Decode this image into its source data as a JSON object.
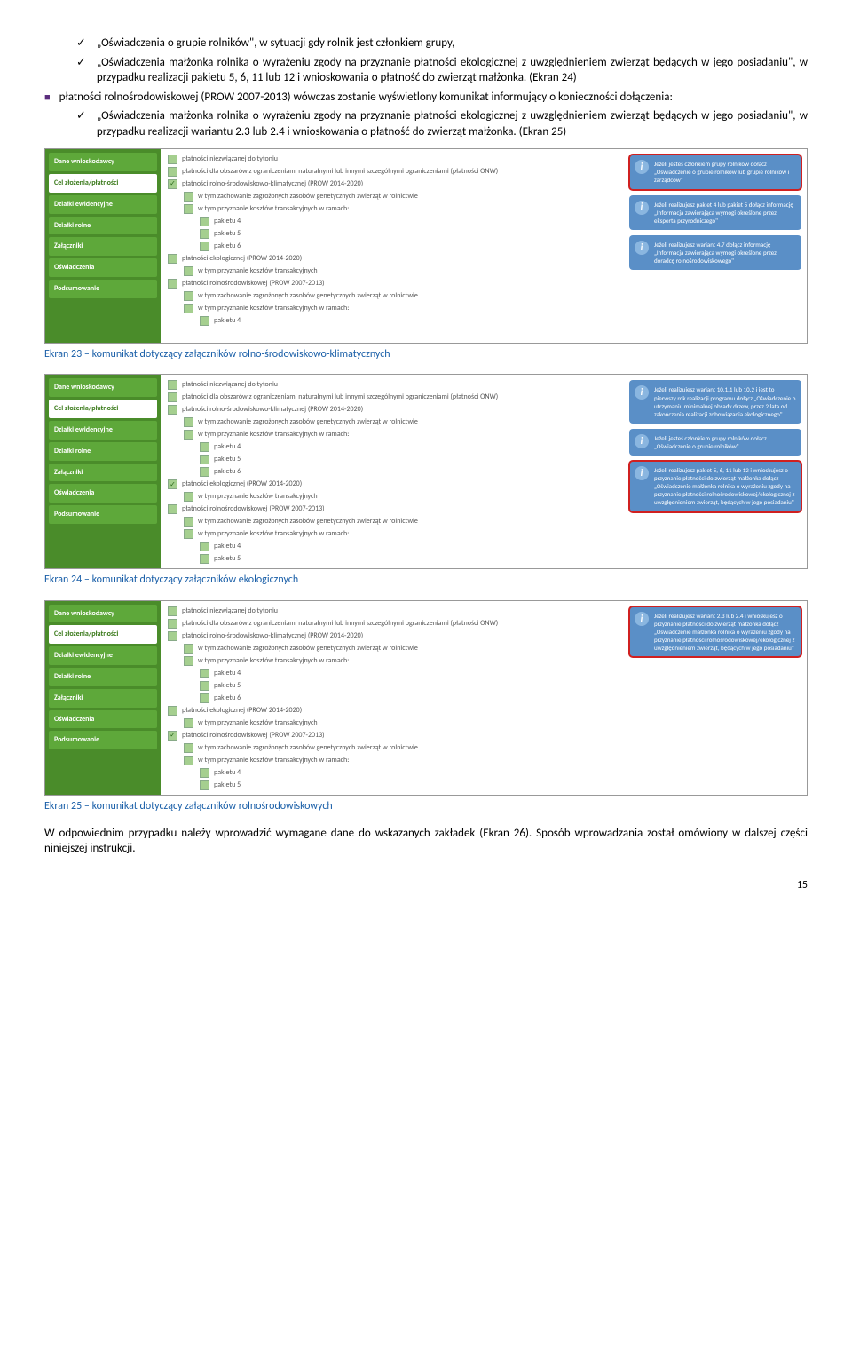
{
  "bullets": {
    "b1_checks": [
      "„Oświadczenia o grupie rolników\", w sytuacji gdy rolnik jest członkiem grupy,",
      "„Oświadczenia małżonka rolnika o wyrażeniu zgody na przyznanie płatności ekologicznej z uwzględnieniem zwierząt będących w jego posiadaniu\", w przypadku realizacji pakietu 5, 6, 11 lub 12 i wnioskowania o płatność do zwierząt małżonka. (Ekran 24)"
    ],
    "b2_main": "płatności rolnośrodowiskowej (PROW 2007-2013) wówczas zostanie wyświetlony komunikat informujący o konieczności dołączenia:",
    "b2_checks": [
      "„Oświadczenia małżonka rolnika o wyrażeniu zgody na przyznanie płatności ekologicznej z uwzględnieniem zwierząt będących w jego posiadaniu\", w przypadku realizacji wariantu 2.3 lub 2.4 i wnioskowania o płatność do zwierząt małżonka. (Ekran 25)"
    ]
  },
  "sidebar": {
    "items": [
      {
        "label": "Dane wnioskodawcy",
        "active": false
      },
      {
        "label": "Cel złożenia/płatności",
        "active": true
      },
      {
        "label": "Działki ewidencyjne",
        "active": false
      },
      {
        "label": "Działki rolne",
        "active": false
      },
      {
        "label": "Załączniki",
        "active": false
      },
      {
        "label": "Oświadczenia",
        "active": false
      },
      {
        "label": "Podsumowanie",
        "active": false
      }
    ]
  },
  "screenshot_checks": {
    "s1": [
      {
        "label": "płatności niezwiązanej do tytoniu",
        "indent": 0,
        "checked": false
      },
      {
        "label": "płatności dla obszarów z ograniczeniami naturalnymi lub innymi szczególnymi ograniczeniami (płatności ONW)",
        "indent": 0,
        "checked": false
      },
      {
        "label": "płatności rolno-środowiskowo-klimatycznej (PROW 2014-2020)",
        "indent": 0,
        "checked": true
      },
      {
        "label": "w tym zachowanie zagrożonych zasobów genetycznych zwierząt w rolnictwie",
        "indent": 1,
        "checked": false
      },
      {
        "label": "w tym przyznanie kosztów transakcyjnych w ramach:",
        "indent": 1,
        "checked": false
      },
      {
        "label": "pakietu 4",
        "indent": 2,
        "checked": false
      },
      {
        "label": "pakietu 5",
        "indent": 2,
        "checked": false
      },
      {
        "label": "pakietu 6",
        "indent": 2,
        "checked": false
      },
      {
        "label": "płatności ekologicznej (PROW 2014-2020)",
        "indent": 0,
        "checked": false
      },
      {
        "label": "w tym przyznanie kosztów transakcyjnych",
        "indent": 1,
        "checked": false
      },
      {
        "label": "płatności rolnośrodowiskowej (PROW 2007-2013)",
        "indent": 0,
        "checked": false
      },
      {
        "label": "w tym zachowanie zagrożonych zasobów genetycznych zwierząt w rolnictwie",
        "indent": 1,
        "checked": false
      },
      {
        "label": "w tym przyznanie kosztów transakcyjnych w ramach:",
        "indent": 1,
        "checked": false
      },
      {
        "label": "pakietu 4",
        "indent": 2,
        "checked": false
      }
    ],
    "s2": [
      {
        "label": "płatności niezwiązanej do tytoniu",
        "indent": 0,
        "checked": false
      },
      {
        "label": "płatności dla obszarów z ograniczeniami naturalnymi lub innymi szczególnymi ograniczeniami (płatności ONW)",
        "indent": 0,
        "checked": false
      },
      {
        "label": "płatności rolno-środowiskowo-klimatycznej (PROW 2014-2020)",
        "indent": 0,
        "checked": false
      },
      {
        "label": "w tym zachowanie zagrożonych zasobów genetycznych zwierząt w rolnictwie",
        "indent": 1,
        "checked": false
      },
      {
        "label": "w tym przyznanie kosztów transakcyjnych w ramach:",
        "indent": 1,
        "checked": false
      },
      {
        "label": "pakietu 4",
        "indent": 2,
        "checked": false
      },
      {
        "label": "pakietu 5",
        "indent": 2,
        "checked": false
      },
      {
        "label": "pakietu 6",
        "indent": 2,
        "checked": false
      },
      {
        "label": "płatności ekologicznej (PROW 2014-2020)",
        "indent": 0,
        "checked": true
      },
      {
        "label": "w tym przyznanie kosztów transakcyjnych",
        "indent": 1,
        "checked": false
      },
      {
        "label": "płatności rolnośrodowiskowej (PROW 2007-2013)",
        "indent": 0,
        "checked": false
      },
      {
        "label": "w tym zachowanie zagrożonych zasobów genetycznych zwierząt w rolnictwie",
        "indent": 1,
        "checked": false
      },
      {
        "label": "w tym przyznanie kosztów transakcyjnych w ramach:",
        "indent": 1,
        "checked": false
      },
      {
        "label": "pakietu 4",
        "indent": 2,
        "checked": false
      },
      {
        "label": "pakietu 5",
        "indent": 2,
        "checked": false
      }
    ],
    "s3": [
      {
        "label": "płatności niezwiązanej do tytoniu",
        "indent": 0,
        "checked": false
      },
      {
        "label": "płatności dla obszarów z ograniczeniami naturalnymi lub innymi szczególnymi ograniczeniami (płatności ONW)",
        "indent": 0,
        "checked": false
      },
      {
        "label": "płatności rolno-środowiskowo-klimatycznej (PROW 2014-2020)",
        "indent": 0,
        "checked": false
      },
      {
        "label": "w tym zachowanie zagrożonych zasobów genetycznych zwierząt w rolnictwie",
        "indent": 1,
        "checked": false
      },
      {
        "label": "w tym przyznanie kosztów transakcyjnych w ramach:",
        "indent": 1,
        "checked": false
      },
      {
        "label": "pakietu 4",
        "indent": 2,
        "checked": false
      },
      {
        "label": "pakietu 5",
        "indent": 2,
        "checked": false
      },
      {
        "label": "pakietu 6",
        "indent": 2,
        "checked": false
      },
      {
        "label": "płatności ekologicznej (PROW 2014-2020)",
        "indent": 0,
        "checked": false
      },
      {
        "label": "w tym przyznanie kosztów transakcyjnych",
        "indent": 1,
        "checked": false
      },
      {
        "label": "płatności rolnośrodowiskowej (PROW 2007-2013)",
        "indent": 0,
        "checked": true
      },
      {
        "label": "w tym zachowanie zagrożonych zasobów genetycznych zwierząt w rolnictwie",
        "indent": 1,
        "checked": false
      },
      {
        "label": "w tym przyznanie kosztów transakcyjnych w ramach:",
        "indent": 1,
        "checked": false
      },
      {
        "label": "pakietu 4",
        "indent": 2,
        "checked": false
      },
      {
        "label": "pakietu 5",
        "indent": 2,
        "checked": false
      }
    ]
  },
  "info_boxes": {
    "s1": [
      {
        "text": "Jeżeli jesteś członkiem grupy rolników dołącz „Oświadczenie o grupie rolników lub grupie rolników i zarządców\"",
        "hl": true
      },
      {
        "text": "Jeżeli realizujesz pakiet 4 lub pakiet 5 dołącz informację „Informacja zawierająca wymogi określone przez eksperta przyrodniczego\"",
        "hl": false
      },
      {
        "text": "Jeżeli realizujesz wariant 4.7 dołącz informację „Informacja zawierająca wymogi określone przez doradcę rolnośrodowiskowego\"",
        "hl": false
      }
    ],
    "s2": [
      {
        "text": "Jeżeli realizujesz wariant 10.1.1 lub 10.2 i jest to pierwszy rok realizacji programu dołącz „Oświadczenie o utrzymaniu minimalnej obsady drzew, przez 2 lata od zakończenia realizacji zobowiązania ekologicznego\"",
        "hl": false
      },
      {
        "text": "Jeżeli jesteś członkiem grupy rolników dołącz „Oświadczenie o grupie rolników\"",
        "hl": false
      },
      {
        "text": "Jeżeli realizujesz pakiet 5, 6, 11 lub 12 i wnioskujesz o przyznanie płatności do zwierząt małżonka dołącz „Oświadczenie małżonka rolnika o wyrażeniu zgody na przyznanie płatności rolnośrodowiskowej/ekologicznej z uwzględnieniem zwierząt, będących w jego posiadaniu\"",
        "hl": true
      }
    ],
    "s3": [
      {
        "text": "Jeżeli realizujesz wariant 2.3 lub 2.4 i wnioskujesz o przyznanie płatności do zwierząt małżonka dołącz „Oświadczenie małżonka rolnika o wyrażeniu zgody na przyznanie płatności rolnośrodowiskowej/ekologicznej z uwzględnieniem zwierząt, będących w jego posiadaniu\"",
        "hl": true
      }
    ]
  },
  "captions": {
    "c1": "Ekran 23 – komunikat dotyczący załączników rolno-środowiskowo-klimatycznych",
    "c2": "Ekran 24 – komunikat dotyczący załączników ekologicznych",
    "c3": "Ekran 25 – komunikat dotyczący załączników rolnośrodowiskowych"
  },
  "footer": "W odpowiednim przypadku należy wprowadzić wymagane dane do wskazanych zakładek (Ekran 26). Sposób wprowadzania został omówiony w dalszej części niniejszej instrukcji.",
  "page": "15"
}
